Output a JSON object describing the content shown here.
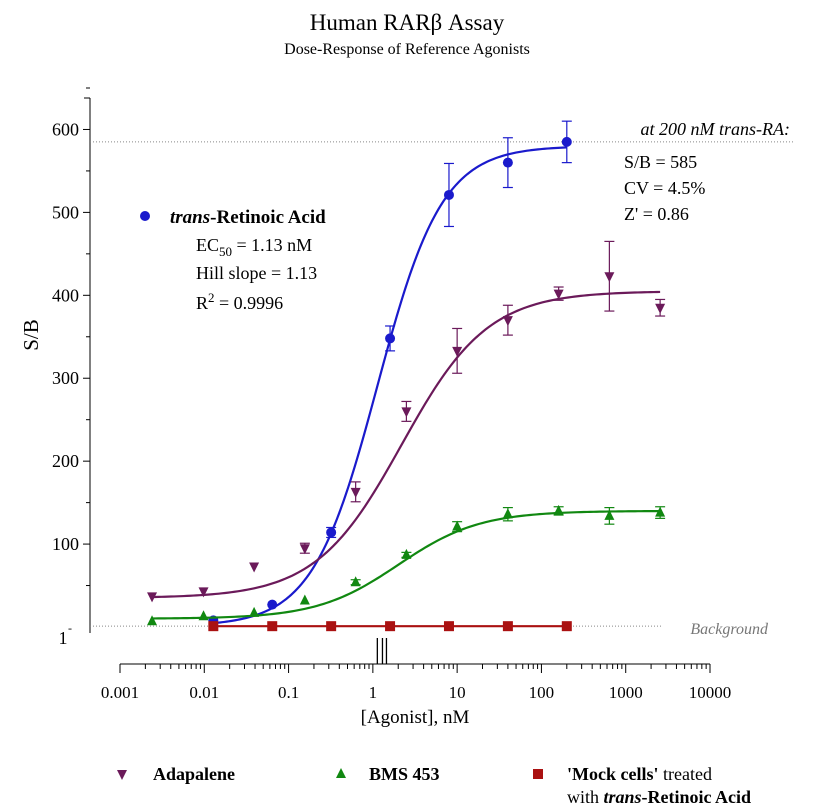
{
  "chart_data": {
    "type": "scatter",
    "title": "Human RARβ Assay",
    "subtitle": "Dose-Response of Reference Agonists",
    "xlabel": "[Agonist], nM",
    "ylabel": "S/B",
    "x_scale": "log",
    "xlim": [
      0.001,
      10000
    ],
    "ylim": [
      0,
      650
    ],
    "x_ticks": [
      {
        "value": 0.001,
        "label": "0.001"
      },
      {
        "value": 0.01,
        "label": "0.01"
      },
      {
        "value": 0.1,
        "label": "0.1"
      },
      {
        "value": 1,
        "label": "1"
      },
      {
        "value": 10,
        "label": "10"
      },
      {
        "value": 100,
        "label": "100"
      },
      {
        "value": 1000,
        "label": "1000"
      },
      {
        "value": 10000,
        "label": "10000"
      }
    ],
    "y_ticks": [
      {
        "value": 100,
        "label": "100"
      },
      {
        "value": 200,
        "label": "200"
      },
      {
        "value": 300,
        "label": "300"
      },
      {
        "value": 400,
        "label": "400"
      },
      {
        "value": 500,
        "label": "500"
      },
      {
        "value": 600,
        "label": "600"
      }
    ],
    "y_baseline_label": "1",
    "y_baseline_dash": "-",
    "reference_lines": [
      {
        "y": 585,
        "label": "at 200 nM trans-RA:"
      },
      {
        "y": 1,
        "label": "Background"
      }
    ],
    "stats_box": {
      "lines": [
        "S/B = 585",
        "CV = 4.5%",
        "Z' = 0.86"
      ]
    },
    "fit_box": {
      "series_name_italic": "trans",
      "series_name_rest": "-Retinoic Acid",
      "ec50_prefix": "EC",
      "ec50_sub": "50",
      "ec50_value": " = 1.13 nM",
      "hill": "Hill slope = 1.13",
      "r2_prefix": "R",
      "r2_sup": "2",
      "r2_value": " = 0.9996"
    },
    "series": [
      {
        "key": "tra",
        "name": "trans-Retinoic Acid",
        "color": "#1a1acc",
        "marker": "circle",
        "x": [
          0.0128,
          0.064,
          0.32,
          1.6,
          8,
          40,
          200
        ],
        "y": [
          8,
          27,
          114,
          348,
          521,
          560,
          585
        ],
        "err": [
          0,
          0,
          6,
          15,
          38,
          30,
          25
        ],
        "fit": {
          "bottom": 1,
          "top": 580,
          "ec50": 1.13,
          "hill": 1.13
        }
      },
      {
        "key": "adap",
        "name": "Adapalene",
        "color": "#6b1a5a",
        "marker": "triangle-down",
        "x": [
          0.0024,
          0.0098,
          0.039,
          0.156,
          0.625,
          2.5,
          10,
          40,
          160,
          640,
          2560
        ],
        "y": [
          37,
          43,
          73,
          95,
          163,
          260,
          333,
          370,
          402,
          423,
          385
        ],
        "err": [
          0,
          0,
          0,
          6,
          12,
          12,
          27,
          18,
          8,
          42,
          10
        ],
        "fit": {
          "bottom": 35,
          "top": 405,
          "ec50": 2.2,
          "hill": 0.85
        }
      },
      {
        "key": "bms",
        "name": "BMS 453",
        "color": "#118811",
        "marker": "triangle-up",
        "x": [
          0.0024,
          0.0098,
          0.039,
          0.156,
          0.625,
          2.5,
          10,
          40,
          160,
          640,
          2560
        ],
        "y": [
          7,
          13,
          17,
          32,
          54,
          87,
          121,
          136,
          140,
          134,
          138
        ],
        "err": [
          0,
          0,
          0,
          0,
          3,
          3,
          6,
          8,
          5,
          10,
          7
        ],
        "fit": {
          "bottom": 10,
          "top": 140,
          "ec50": 2.0,
          "hill": 0.9
        }
      },
      {
        "key": "mock",
        "name": "'Mock cells' treated with trans-Retinoic Acid",
        "color": "#aa1111",
        "marker": "square",
        "x": [
          0.0128,
          0.064,
          0.32,
          1.6,
          8,
          40,
          200
        ],
        "y": [
          1,
          1,
          1,
          1,
          1,
          1,
          1
        ],
        "err": [
          0,
          0,
          0,
          0,
          0,
          0,
          0
        ],
        "fit": {
          "bottom": 1,
          "top": 1,
          "ec50": 1,
          "hill": 1
        }
      }
    ],
    "ec50_markers": [
      1.13,
      1.3,
      1.45
    ],
    "legend": {
      "placement": "bottom",
      "entries": [
        {
          "series": "adap",
          "bold": "Adapalene",
          "rest": ""
        },
        {
          "series": "bms",
          "bold": "BMS 453",
          "rest": ""
        },
        {
          "series": "mock",
          "bold": "'Mock cells'",
          "rest": " treated",
          "line2_normal": "with ",
          "line2_bold_italic": "trans",
          "line2_bold": "-Retinoic Acid"
        }
      ]
    }
  }
}
